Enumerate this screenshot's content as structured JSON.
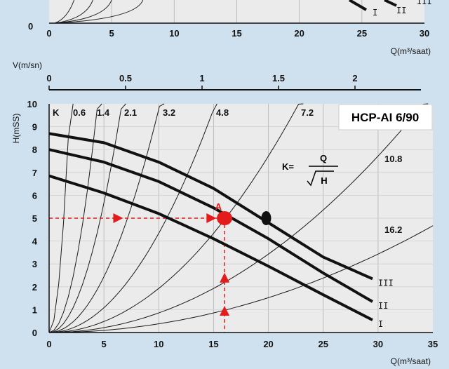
{
  "top_chart": {
    "x_ticks": [
      "0",
      "5",
      "10",
      "15",
      "20",
      "25",
      "30"
    ],
    "y_tick_zero": "0",
    "xlabel": "Q(m³/saat)",
    "curve_labels": [
      "I",
      "II",
      "III"
    ]
  },
  "velocity_axis": {
    "label": "V(m/sn)",
    "ticks": [
      "0",
      "0.5",
      "1",
      "1.5",
      "2"
    ]
  },
  "chart_data": {
    "type": "line",
    "title": "HCP-AI 6/90",
    "xlabel": "Q(m³/saat)",
    "ylabel": "H(mSS)",
    "xlim": [
      0,
      35
    ],
    "ylim": [
      0,
      10
    ],
    "x_ticks": [
      "0",
      "5",
      "10",
      "15",
      "20",
      "25",
      "30",
      "35"
    ],
    "y_ticks": [
      "0",
      "1",
      "2",
      "3",
      "4",
      "5",
      "6",
      "7",
      "8",
      "9",
      "10"
    ],
    "grid": true,
    "series": [
      {
        "name": "III",
        "x": [
          0,
          5,
          10,
          15,
          20,
          25,
          29.5
        ],
        "y": [
          8.7,
          8.3,
          7.45,
          6.3,
          4.8,
          3.3,
          2.35
        ]
      },
      {
        "name": "II",
        "x": [
          0,
          5,
          10,
          15,
          20,
          25,
          29.5
        ],
        "y": [
          8.0,
          7.45,
          6.6,
          5.45,
          4.1,
          2.6,
          1.35
        ]
      },
      {
        "name": "I",
        "x": [
          0,
          5,
          10,
          15,
          20,
          25,
          29.5
        ],
        "y": [
          6.85,
          6.1,
          5.2,
          4.1,
          2.9,
          1.65,
          0.55
        ]
      }
    ],
    "k_curves": {
      "label_prefix": "K",
      "values": [
        "0.6",
        "1.4",
        "2.1",
        "3.2",
        "4.8",
        "7.2",
        "10.8",
        "16.2"
      ]
    },
    "operating_point": {
      "label": "A",
      "x": 16,
      "y": 5
    },
    "marker_point": {
      "x": 19.8,
      "y": 5
    },
    "formula": {
      "lhs": "K=",
      "numerator": "Q",
      "denominator": "H"
    },
    "colors": {
      "background": "#cfe1ef",
      "plot": "#ebebeb",
      "accent": "#e31b1b",
      "curve": "#111111"
    }
  }
}
